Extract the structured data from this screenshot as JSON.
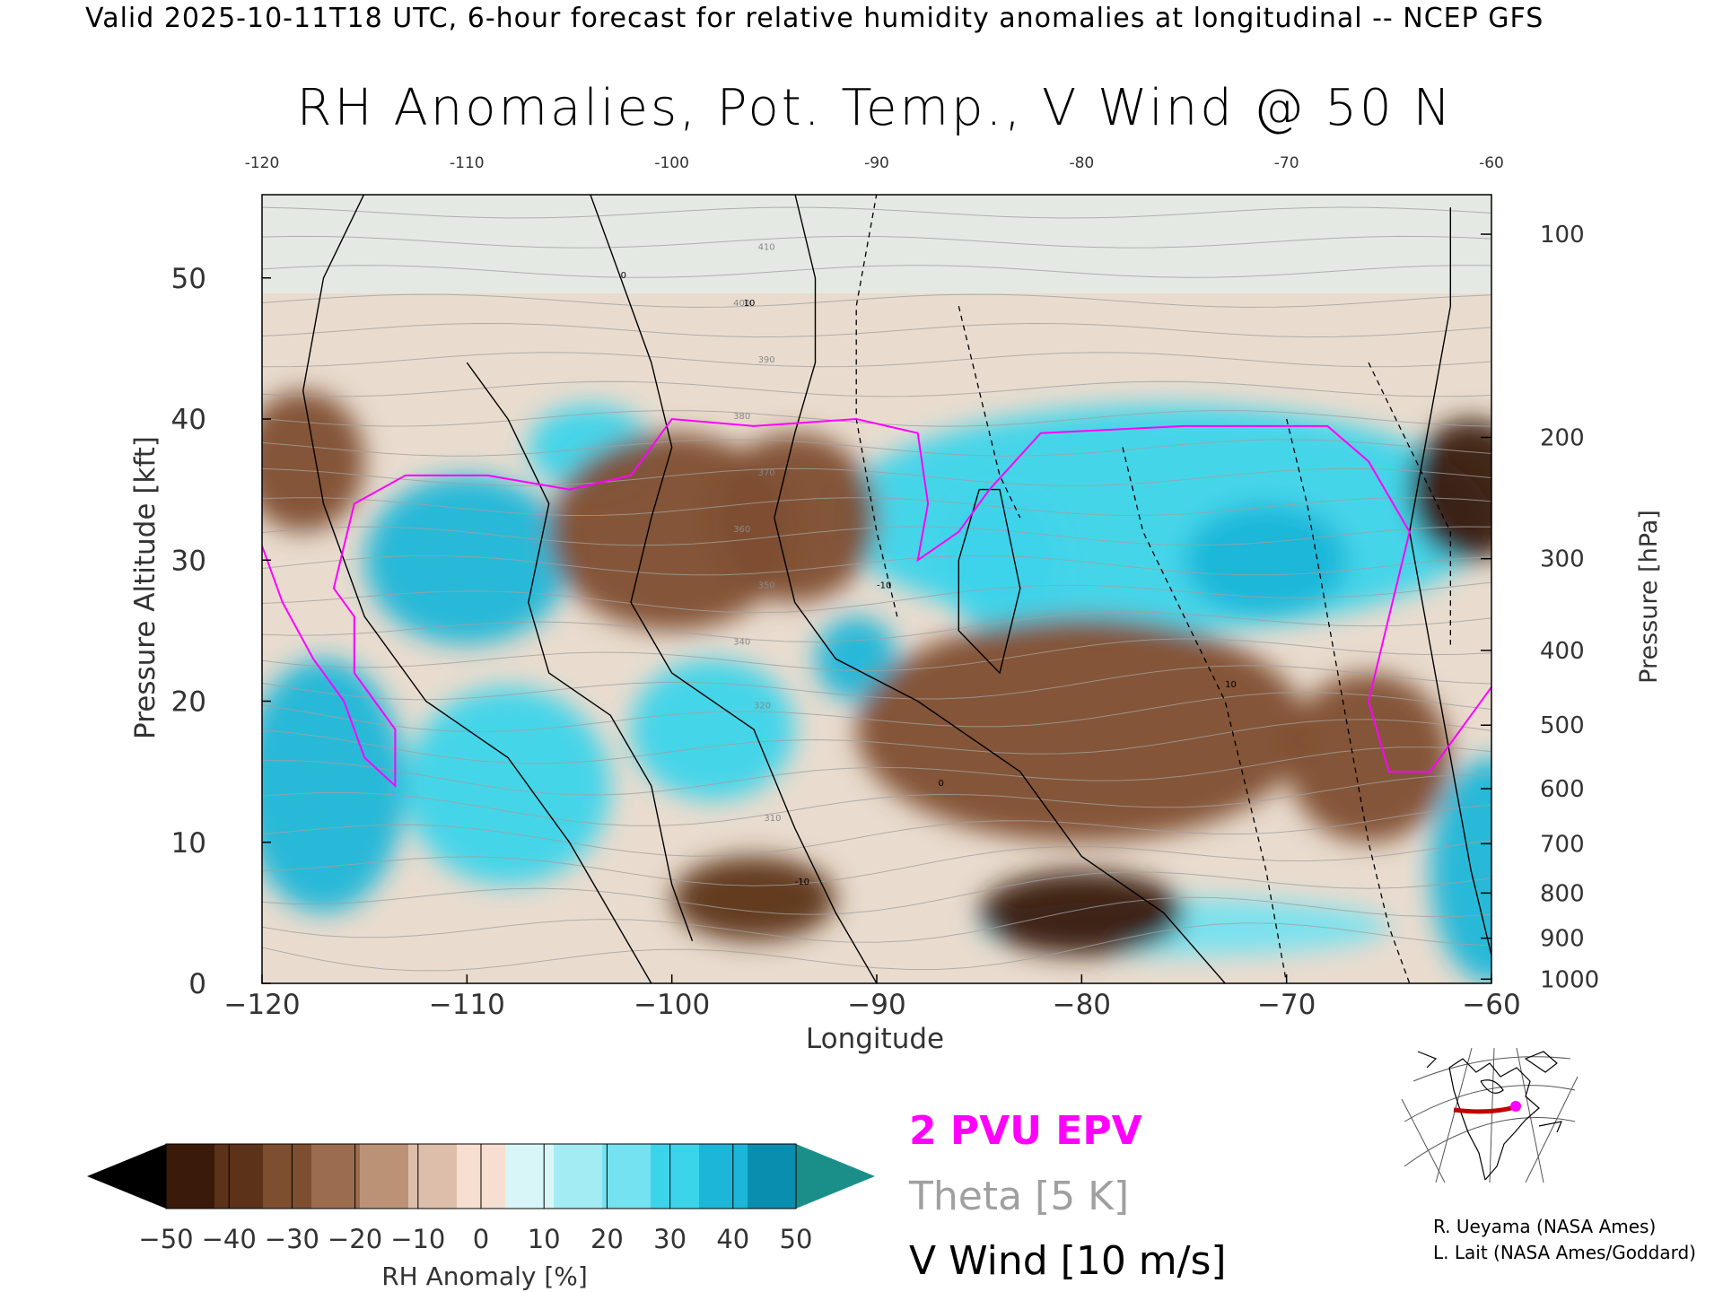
{
  "header": {
    "valid_text": "Valid 2025-10-11T18 UTC, 6-hour forecast for relative humidity anomalies at longitudinal -- NCEP GFS",
    "title": "RH Anomalies, Pot. Temp., V Wind @ 50 N"
  },
  "chart_data": {
    "type": "heatmap",
    "title": "RH Anomalies, Pot. Temp., V Wind @ 50 N",
    "xlabel": "Longitude",
    "ylabel": "Pressure Altitude [kft]",
    "y2label": "Pressure [hPa]",
    "xlim": [
      -120,
      -60
    ],
    "ylim": [
      0,
      55.9
    ],
    "x_ticks": [
      -120,
      -110,
      -100,
      -90,
      -80,
      -70,
      -60
    ],
    "x_tick_labels": [
      "−120",
      "−110",
      "−100",
      "−90",
      "−80",
      "−70",
      "−60"
    ],
    "top_tick_labels": [
      "-120",
      "-110",
      "-100",
      "-90",
      "-80",
      "-70",
      "-60"
    ],
    "y_ticks": [
      0,
      10,
      20,
      30,
      40,
      50
    ],
    "y_tick_labels": [
      "0",
      "10",
      "20",
      "30",
      "40",
      "50"
    ],
    "pressure_levels": [
      {
        "hpa": 100,
        "kft": 53.1,
        "label": "100"
      },
      {
        "hpa": 200,
        "kft": 38.7,
        "label": "200"
      },
      {
        "hpa": 300,
        "kft": 30.1,
        "label": "300"
      },
      {
        "hpa": 400,
        "kft": 23.6,
        "label": "400"
      },
      {
        "hpa": 500,
        "kft": 18.3,
        "label": "500"
      },
      {
        "hpa": 600,
        "kft": 13.8,
        "label": "600"
      },
      {
        "hpa": 700,
        "kft": 9.9,
        "label": "700"
      },
      {
        "hpa": 800,
        "kft": 6.4,
        "label": "800"
      },
      {
        "hpa": 900,
        "kft": 3.2,
        "label": "900"
      },
      {
        "hpa": 1000,
        "kft": 0.3,
        "label": "1000"
      }
    ],
    "colorbar": {
      "label": "RH Anomaly [%]",
      "levels": [
        -50,
        -40,
        -30,
        -20,
        -10,
        0,
        10,
        20,
        30,
        40,
        50
      ],
      "tick_labels": [
        "−50",
        "−40",
        "−30",
        "−20",
        "−10",
        "0",
        "10",
        "20",
        "30",
        "40",
        "50"
      ],
      "colors": [
        "#3a1a08",
        "#5c3218",
        "#7e4e30",
        "#9c6c4e",
        "#bc9276",
        "#ddbeaa",
        "#f6ded0",
        "#d8f6f8",
        "#a4ecf4",
        "#74e2f0",
        "#3cd4ea",
        "#1cb6d8",
        "#0a8eb0"
      ],
      "under_color": "#000000",
      "over_color": "#1a8f8a"
    },
    "anomaly_blobs": [
      {
        "x": -110,
        "y": 30,
        "v": 40,
        "rx": 5,
        "ry": 6
      },
      {
        "x": -104,
        "y": 38,
        "v": 30,
        "rx": 3,
        "ry": 3
      },
      {
        "x": -117,
        "y": 14,
        "v": 40,
        "rx": 4,
        "ry": 9
      },
      {
        "x": -108,
        "y": 14,
        "v": 30,
        "rx": 5,
        "ry": 7
      },
      {
        "x": -98,
        "y": 18,
        "v": 35,
        "rx": 4,
        "ry": 5
      },
      {
        "x": -91,
        "y": 23,
        "v": 40,
        "rx": 2,
        "ry": 3
      },
      {
        "x": -76,
        "y": 33,
        "v": 30,
        "rx": 16,
        "ry": 8
      },
      {
        "x": -71,
        "y": 30,
        "v": 45,
        "rx": 4,
        "ry": 4
      },
      {
        "x": -84,
        "y": 30,
        "v": 35,
        "rx": 3,
        "ry": 5
      },
      {
        "x": -60,
        "y": 8,
        "v": 45,
        "rx": 3,
        "ry": 8
      },
      {
        "x": -75,
        "y": 4,
        "v": 20,
        "rx": 10,
        "ry": 2
      },
      {
        "x": -100,
        "y": 32,
        "v": -30,
        "rx": 6,
        "ry": 7
      },
      {
        "x": -94,
        "y": 33,
        "v": -30,
        "rx": 4,
        "ry": 6
      },
      {
        "x": -80,
        "y": 18,
        "v": -30,
        "rx": 11,
        "ry": 8
      },
      {
        "x": -80,
        "y": 5,
        "v": -45,
        "rx": 5,
        "ry": 3
      },
      {
        "x": -96,
        "y": 6,
        "v": -35,
        "rx": 4,
        "ry": 3
      },
      {
        "x": -66,
        "y": 16,
        "v": -30,
        "rx": 4,
        "ry": 6
      },
      {
        "x": -61,
        "y": 35,
        "v": -45,
        "rx": 3,
        "ry": 5
      },
      {
        "x": -118,
        "y": 37,
        "v": -30,
        "rx": 3,
        "ry": 5
      }
    ],
    "theta_levels": [
      310,
      320,
      340,
      350,
      360,
      370,
      380,
      390,
      400,
      410,
      420
    ],
    "wind_levels": [
      0,
      10,
      -10
    ],
    "epv_label": "2 PVU EPV",
    "epv_color": "#ff00ff",
    "theta_label": "Theta [5 K]",
    "theta_color": "#a0a0a0",
    "wind_label": "V Wind [10 m/s]"
  },
  "credits": {
    "line1": "R. Ueyama (NASA Ames)",
    "line2": "L. Lait (NASA Ames/Goddard)"
  },
  "inset_map": {
    "marker_color": "#ff00ff",
    "track_color": "#c00000"
  }
}
